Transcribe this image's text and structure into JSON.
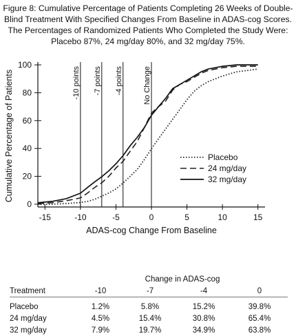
{
  "caption": {
    "line1": "Figure 8: Cumulative Percentage of Patients Completing 26 Weeks of Double-",
    "line2": "Blind Treatment With Specified Changes From Baseline in ADAS-cog Scores.",
    "line3": "The Percentages of Randomized Patients Who Completed the Study Were:",
    "line4": "Placebo 87%, 24 mg/day 80%, and 32 mg/day 75%."
  },
  "chart_data": {
    "type": "line",
    "xlabel": "ADAS-cog Change From Baseline",
    "ylabel": "Cumulative Percentage of Patients",
    "xlim": [
      -16,
      16
    ],
    "ylim": [
      -2,
      102
    ],
    "x_ticks": [
      -15,
      -10,
      -5,
      0,
      5,
      10,
      15
    ],
    "y_ticks": [
      0,
      20,
      40,
      60,
      80,
      100
    ],
    "legend_position": "lower-right",
    "reference_lines": [
      {
        "x": -10,
        "label": "-10 points"
      },
      {
        "x": -7,
        "label": "-7 points"
      },
      {
        "x": -4,
        "label": "-4 points"
      },
      {
        "x": 0,
        "label": "No Change"
      }
    ],
    "series": [
      {
        "name": "Placebo",
        "style": "dotted",
        "color": "#222222",
        "points": [
          [
            -16,
            0
          ],
          [
            -14,
            0
          ],
          [
            -12,
            0.5
          ],
          [
            -10,
            1.2
          ],
          [
            -9,
            2
          ],
          [
            -8,
            3.5
          ],
          [
            -7,
            5.8
          ],
          [
            -6,
            8
          ],
          [
            -5,
            11
          ],
          [
            -4,
            15.2
          ],
          [
            -3,
            20
          ],
          [
            -2,
            25
          ],
          [
            -1,
            32
          ],
          [
            0,
            39.8
          ],
          [
            1,
            47
          ],
          [
            2,
            54
          ],
          [
            3,
            61
          ],
          [
            4,
            68
          ],
          [
            5,
            75
          ],
          [
            6,
            81
          ],
          [
            7,
            85
          ],
          [
            8,
            88
          ],
          [
            10,
            92
          ],
          [
            12,
            95
          ],
          [
            15,
            97
          ]
        ]
      },
      {
        "name": "24 mg/day",
        "style": "dashed",
        "color": "#222222",
        "points": [
          [
            -16,
            0.5
          ],
          [
            -14,
            1
          ],
          [
            -12,
            2.5
          ],
          [
            -10,
            4.5
          ],
          [
            -9,
            8
          ],
          [
            -8,
            12
          ],
          [
            -7,
            15.4
          ],
          [
            -6,
            20
          ],
          [
            -5,
            26
          ],
          [
            -4,
            30.8
          ],
          [
            -3,
            38
          ],
          [
            -2,
            45
          ],
          [
            -1,
            55
          ],
          [
            0,
            65.4
          ],
          [
            1,
            70
          ],
          [
            2,
            74
          ],
          [
            3,
            82
          ],
          [
            4,
            86
          ],
          [
            5,
            88
          ],
          [
            6,
            91
          ],
          [
            7,
            94
          ],
          [
            8,
            96
          ],
          [
            10,
            98
          ],
          [
            12,
            99
          ],
          [
            15,
            99
          ]
        ]
      },
      {
        "name": "32 mg/day",
        "style": "solid",
        "color": "#111111",
        "points": [
          [
            -16,
            1
          ],
          [
            -14,
            2
          ],
          [
            -12,
            4
          ],
          [
            -10,
            7.9
          ],
          [
            -9,
            12
          ],
          [
            -8,
            16
          ],
          [
            -7,
            19.7
          ],
          [
            -6,
            24
          ],
          [
            -5,
            29
          ],
          [
            -4,
            34.9
          ],
          [
            -3,
            42
          ],
          [
            -2,
            48
          ],
          [
            -1,
            55
          ],
          [
            0,
            63.8
          ],
          [
            1,
            70
          ],
          [
            2,
            76
          ],
          [
            3,
            83
          ],
          [
            4,
            86
          ],
          [
            5,
            89
          ],
          [
            6,
            92
          ],
          [
            7,
            95
          ],
          [
            8,
            97
          ],
          [
            10,
            99
          ],
          [
            12,
            100
          ],
          [
            15,
            100
          ]
        ]
      }
    ]
  },
  "table": {
    "group_header": "Change in ADAS-cog",
    "columns": [
      "Treatment",
      "-10",
      "-7",
      "-4",
      "0"
    ],
    "rows": [
      [
        "Placebo",
        "1.2%",
        "5.8%",
        "15.2%",
        "39.8%"
      ],
      [
        "24 mg/day",
        "4.5%",
        "15.4%",
        "30.8%",
        "65.4%"
      ],
      [
        "32 mg/day",
        "7.9%",
        "19.7%",
        "34.9%",
        "63.8%"
      ]
    ]
  }
}
